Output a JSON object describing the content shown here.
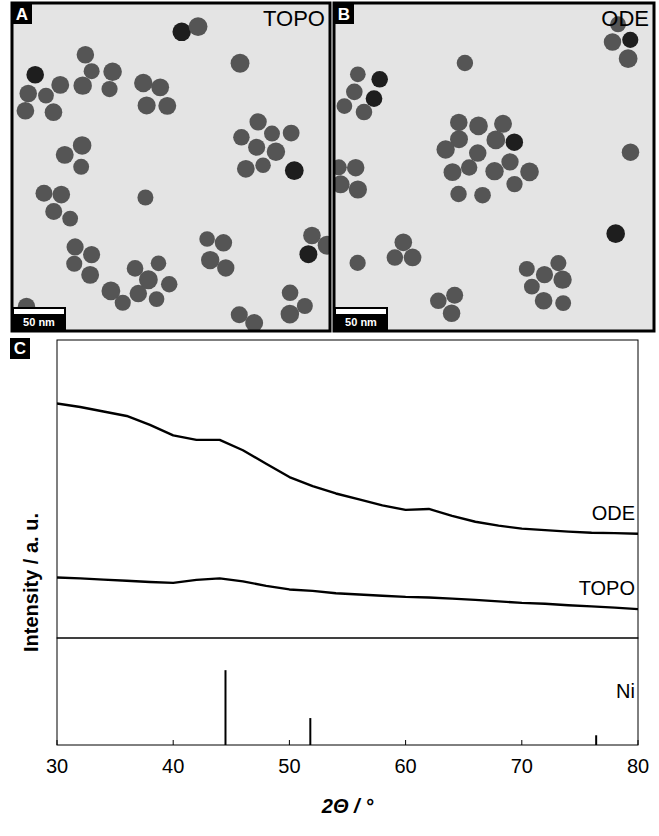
{
  "micrographs": [
    {
      "panel_label": "A",
      "label": "TOPO",
      "scale_bar": "50 nm"
    },
    {
      "panel_label": "B",
      "label": "ODE",
      "scale_bar": "50 nm"
    }
  ],
  "chart_data": [
    {
      "type": "line",
      "panel_label": "C",
      "y_label": "Intensity / a. u.",
      "tick_labels": false,
      "x": [
        30,
        32,
        34,
        36,
        38,
        40,
        42,
        44,
        46,
        48,
        50,
        52,
        54,
        56,
        58,
        60,
        62,
        64,
        66,
        68,
        70,
        72,
        74,
        76,
        78,
        80
      ],
      "xlim": [
        30,
        80
      ],
      "ylim": [
        0,
        100
      ],
      "series": [
        {
          "name": "ODE",
          "color": "#000000",
          "values": [
            78.7,
            77.5,
            76,
            74.5,
            71.5,
            68,
            66.5,
            66.5,
            63,
            58.5,
            54,
            51,
            48.5,
            46.5,
            44.5,
            43,
            43.3,
            41,
            39,
            37.7,
            36.7,
            36.2,
            35.7,
            35.3,
            35.2,
            35
          ]
        },
        {
          "name": "TOPO",
          "color": "#000000",
          "values": [
            20.3,
            20,
            19.6,
            19.2,
            18.8,
            18.5,
            19.5,
            20,
            19,
            17.5,
            16.3,
            15.8,
            15,
            14.6,
            14.2,
            13.8,
            13.6,
            13.2,
            12.8,
            12.3,
            11.8,
            11.5,
            11,
            10.6,
            10.2,
            9.7
          ]
        }
      ]
    },
    {
      "type": "stem",
      "x_label": "2Θ / °",
      "tick_labels": "x",
      "x": [
        44.5,
        51.8,
        76.4
      ],
      "xlim": [
        30,
        80
      ],
      "xticks": [
        30,
        40,
        50,
        60,
        70,
        80
      ],
      "ylim": [
        0,
        143
      ],
      "series": [
        {
          "name": "Ni",
          "color": "#000000",
          "values": [
            100,
            36,
            13
          ]
        }
      ]
    }
  ]
}
